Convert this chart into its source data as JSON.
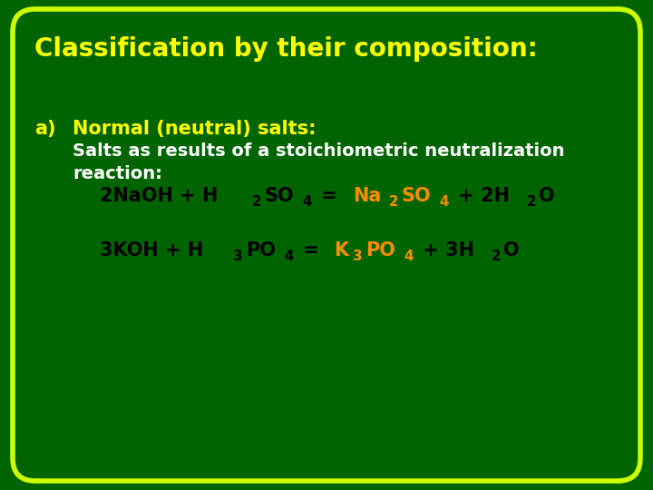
{
  "background_color": "#006400",
  "border_color": "#CCFF00",
  "title": "Classification by their composition:",
  "title_color": "#FFFF00",
  "title_fontsize": 20,
  "label_a": "a)",
  "label_a_color": "#FFFF00",
  "label_a_fontsize": 15,
  "subtitle1": "Normal (neutral) salts:",
  "subtitle1_color": "#FFFF00",
  "subtitle1_fontsize": 15,
  "subtitle2": "Salts as results of a stoichiometric neutralization",
  "subtitle2b": "reaction:",
  "subtitle_color": "#FFFFFF",
  "subtitle_fontsize": 14,
  "eq_color_black": "#000000",
  "eq_color_orange": "#FF8C00",
  "eq_fontsize": 15,
  "border_linewidth": 4
}
